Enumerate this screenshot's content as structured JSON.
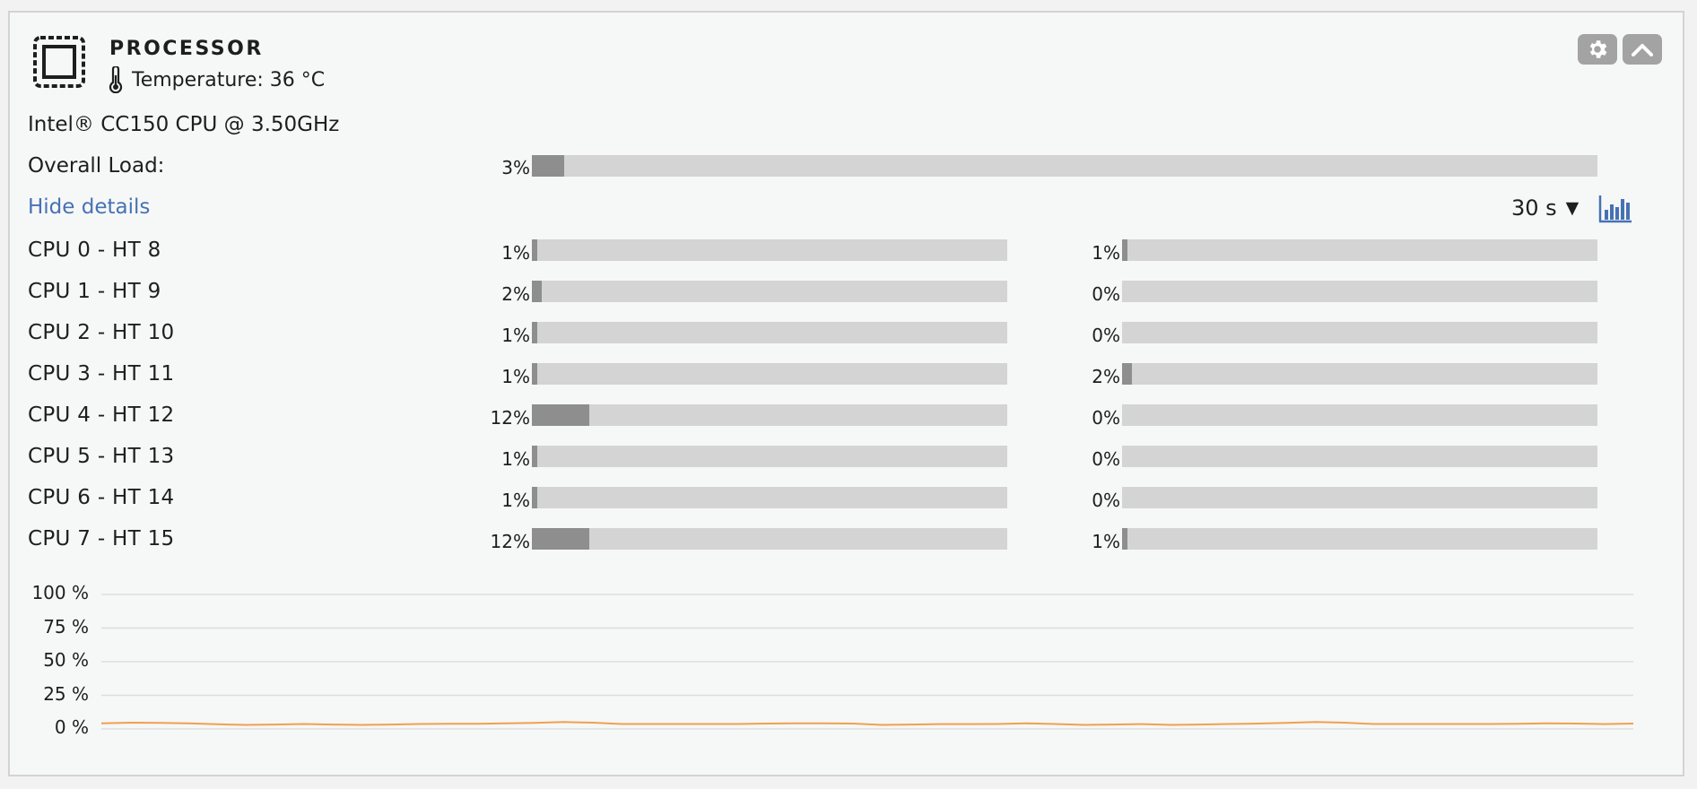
{
  "header": {
    "title": "PROCESSOR",
    "temperature": "Temperature: 36 °C",
    "icon": "cpu-chip-icon",
    "temp_icon": "thermometer-icon",
    "settings_icon": "gear-icon",
    "collapse_icon": "chevron-up-icon"
  },
  "cpu_model": "Intel® CC150 CPU @ 3.50GHz",
  "overall": {
    "label": "Overall Load:",
    "value_text": "3%",
    "value": 3
  },
  "details": {
    "hide_label": "Hide details",
    "interval": "30 s",
    "interval_caret": "▼",
    "graph_icon": "bar-chart-icon"
  },
  "cores": [
    {
      "label": "CPU 0 - HT 8",
      "a_text": "1%",
      "a": 1,
      "b_text": "1%",
      "b": 1
    },
    {
      "label": "CPU 1 - HT 9",
      "a_text": "2%",
      "a": 2,
      "b_text": "0%",
      "b": 0
    },
    {
      "label": "CPU 2 - HT 10",
      "a_text": "1%",
      "a": 1,
      "b_text": "0%",
      "b": 0
    },
    {
      "label": "CPU 3 - HT 11",
      "a_text": "1%",
      "a": 1,
      "b_text": "2%",
      "b": 2
    },
    {
      "label": "CPU 4 - HT 12",
      "a_text": "12%",
      "a": 12,
      "b_text": "0%",
      "b": 0
    },
    {
      "label": "CPU 5 - HT 13",
      "a_text": "1%",
      "a": 1,
      "b_text": "0%",
      "b": 0
    },
    {
      "label": "CPU 6 - HT 14",
      "a_text": "1%",
      "a": 1,
      "b_text": "0%",
      "b": 0
    },
    {
      "label": "CPU 7 - HT 15",
      "a_text": "12%",
      "a": 12,
      "b_text": "1%",
      "b": 1
    }
  ],
  "colors": {
    "accent": "#4672b4",
    "bar_fill": "#8e8e8e",
    "bar_track": "#d4d4d4",
    "graph_line": "#f0a050",
    "grid": "#dddddd"
  },
  "chart_data": {
    "type": "line",
    "ylim": [
      0,
      100
    ],
    "y_ticks": [
      "100 %",
      "75 %",
      "50 %",
      "25 %",
      "0 %"
    ],
    "grid": true,
    "series": [
      {
        "values": [
          1.5,
          2,
          1.8,
          1.5,
          0.8,
          0.3,
          0.6,
          1.0,
          0.6,
          0.3,
          0.6,
          1.0,
          1.2,
          1.2,
          1.5,
          1.8,
          2.5,
          2.0,
          1.0,
          1.0,
          1.0,
          1.0,
          1.0,
          1.3,
          1.5,
          1.5,
          1.3,
          0.3,
          0.6,
          0.9,
          0.9,
          1.0,
          1.5,
          1.0,
          0.3,
          0.6,
          0.9,
          0.3,
          0.6,
          1.0,
          1.3,
          1.8,
          2.5,
          2.0,
          1.0,
          1.0,
          1.0,
          1.0,
          1.0,
          1.2,
          1.5,
          1.3,
          0.9,
          1.3
        ]
      }
    ]
  }
}
